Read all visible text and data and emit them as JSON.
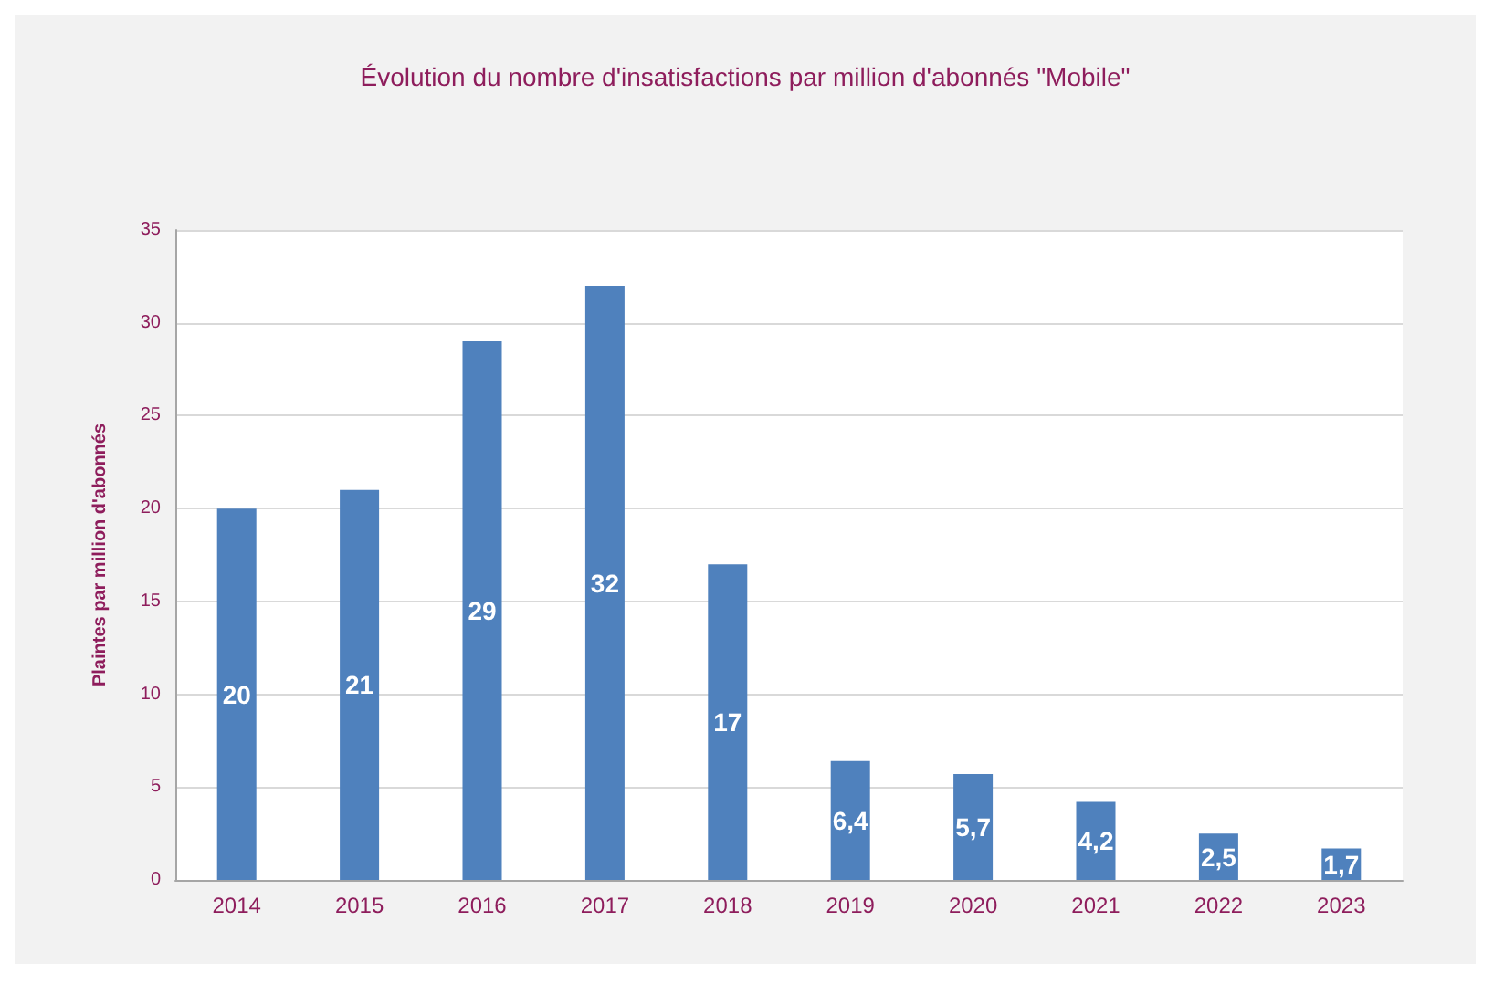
{
  "chart_data": {
    "type": "bar",
    "title": "Évolution du nombre d'insatisfactions par million d'abonnés \"Mobile\"",
    "ylabel": "Plaintes par million d'abonnés",
    "categories": [
      "2014",
      "2015",
      "2016",
      "2017",
      "2018",
      "2019",
      "2020",
      "2021",
      "2022",
      "2023"
    ],
    "values": [
      20,
      21,
      29,
      32,
      17,
      6.4,
      5.7,
      4.2,
      2.5,
      1.7
    ],
    "value_labels": [
      "20",
      "21",
      "29",
      "32",
      "17",
      "6,4",
      "5,7",
      "4,2",
      "2,5",
      "1,7"
    ],
    "color": "#4f81bd",
    "ylim": [
      0,
      35
    ],
    "yticks": [
      0,
      5,
      10,
      15,
      20,
      25,
      30,
      35
    ],
    "grid": "y"
  }
}
